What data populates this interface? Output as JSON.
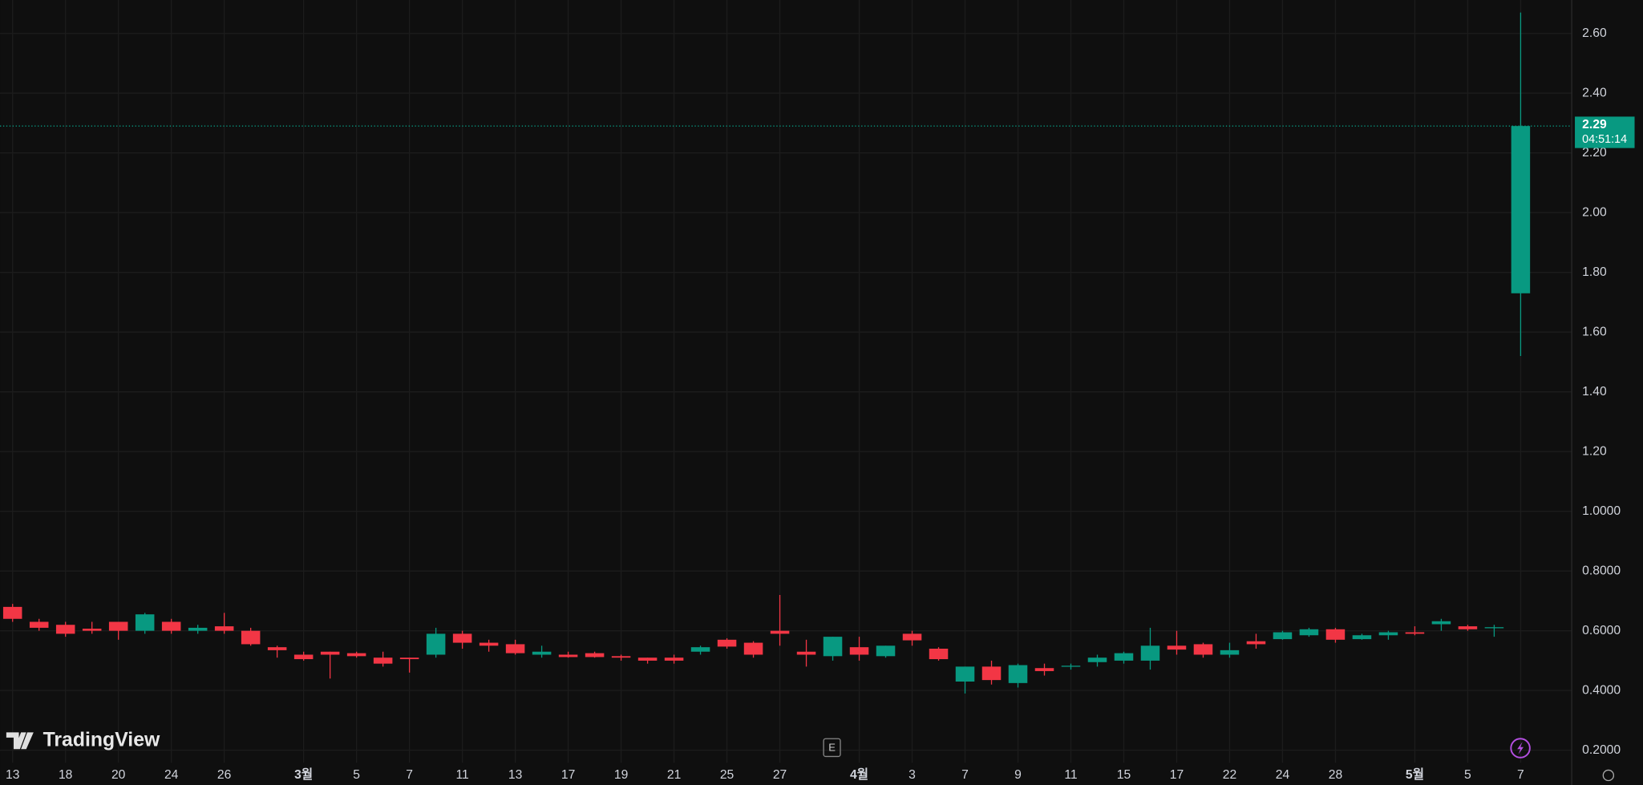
{
  "chart_data": {
    "type": "candlestick",
    "categories": [
      "13",
      null,
      "18",
      null,
      "20",
      null,
      "24",
      null,
      "26",
      null,
      null,
      "3월",
      null,
      "5",
      null,
      "7",
      null,
      "11",
      null,
      "13",
      null,
      "17",
      null,
      "19",
      null,
      "21",
      null,
      "25",
      null,
      "27",
      null,
      null,
      "4월",
      null,
      "3",
      null,
      "7",
      null,
      "9",
      null,
      "11",
      null,
      "15",
      null,
      "17",
      null,
      "22",
      null,
      "24",
      null,
      "28",
      null,
      null,
      "5월",
      null,
      "5",
      null,
      "7"
    ],
    "month_labels": [
      "3월",
      "4월",
      "5월"
    ],
    "open": [
      0.68,
      0.63,
      0.62,
      0.607,
      0.63,
      0.6,
      0.63,
      0.6,
      0.615,
      0.6,
      0.545,
      0.52,
      0.53,
      0.525,
      0.51,
      0.51,
      0.52,
      0.59,
      0.56,
      0.555,
      0.52,
      0.52,
      0.525,
      0.515,
      0.51,
      0.51,
      0.53,
      0.57,
      0.56,
      0.6,
      0.53,
      0.515,
      0.545,
      0.515,
      0.59,
      0.54,
      0.43,
      0.48,
      0.425,
      0.475,
      0.48,
      0.495,
      0.5,
      0.5,
      0.55,
      0.555,
      0.52,
      0.565,
      0.572,
      0.585,
      0.605,
      0.572,
      0.585,
      0.595,
      0.622,
      0.615,
      0.61,
      1.73
    ],
    "high": [
      0.69,
      0.64,
      0.63,
      0.63,
      0.63,
      0.66,
      0.64,
      0.62,
      0.66,
      0.61,
      0.55,
      0.53,
      0.53,
      0.53,
      0.53,
      0.51,
      0.61,
      0.6,
      0.57,
      0.57,
      0.55,
      0.53,
      0.53,
      0.52,
      0.51,
      0.52,
      0.55,
      0.575,
      0.565,
      0.72,
      0.57,
      0.58,
      0.58,
      0.55,
      0.6,
      0.545,
      0.48,
      0.5,
      0.49,
      0.49,
      0.49,
      0.52,
      0.53,
      0.61,
      0.6,
      0.56,
      0.56,
      0.59,
      0.6,
      0.61,
      0.61,
      0.59,
      0.6,
      0.615,
      0.64,
      0.62,
      0.62,
      2.67
    ],
    "low": [
      0.63,
      0.6,
      0.58,
      0.59,
      0.57,
      0.59,
      0.59,
      0.59,
      0.59,
      0.55,
      0.51,
      0.5,
      0.44,
      0.51,
      0.48,
      0.46,
      0.51,
      0.54,
      0.53,
      0.52,
      0.51,
      0.51,
      0.51,
      0.5,
      0.49,
      0.49,
      0.52,
      0.54,
      0.51,
      0.55,
      0.48,
      0.5,
      0.5,
      0.51,
      0.55,
      0.5,
      0.39,
      0.42,
      0.41,
      0.45,
      0.47,
      0.48,
      0.49,
      0.47,
      0.52,
      0.51,
      0.51,
      0.54,
      0.57,
      0.58,
      0.56,
      0.57,
      0.57,
      0.585,
      0.6,
      0.6,
      0.58,
      1.52
    ],
    "close": [
      0.64,
      0.61,
      0.59,
      0.6,
      0.6,
      0.655,
      0.6,
      0.61,
      0.6,
      0.555,
      0.535,
      0.505,
      0.52,
      0.515,
      0.49,
      0.505,
      0.59,
      0.56,
      0.55,
      0.525,
      0.53,
      0.512,
      0.512,
      0.51,
      0.5,
      0.5,
      0.545,
      0.547,
      0.52,
      0.59,
      0.52,
      0.58,
      0.52,
      0.55,
      0.568,
      0.505,
      0.48,
      0.435,
      0.485,
      0.465,
      0.483,
      0.51,
      0.525,
      0.55,
      0.537,
      0.52,
      0.535,
      0.555,
      0.595,
      0.605,
      0.57,
      0.585,
      0.595,
      0.59,
      0.632,
      0.605,
      0.612,
      2.29
    ],
    "up_color": "#089981",
    "down_color": "#f23645",
    "ylim": [
      0.158,
      2.712
    ],
    "yticks": [
      {
        "value": 2.6,
        "label": "2.60"
      },
      {
        "value": 2.4,
        "label": "2.40"
      },
      {
        "value": 2.2,
        "label": "2.20"
      },
      {
        "value": 2.0,
        "label": "2.00"
      },
      {
        "value": 1.8,
        "label": "1.80"
      },
      {
        "value": 1.6,
        "label": "1.60"
      },
      {
        "value": 1.4,
        "label": "1.40"
      },
      {
        "value": 1.2,
        "label": "1.20"
      },
      {
        "value": 1.0,
        "label": "1.0000"
      },
      {
        "value": 0.8,
        "label": "0.8000"
      },
      {
        "value": 0.6,
        "label": "0.6000"
      },
      {
        "value": 0.4,
        "label": "0.4000"
      },
      {
        "value": 0.2,
        "label": "0.2000"
      }
    ],
    "grid": true,
    "last_price": {
      "value": 2.29,
      "label": "2.29"
    },
    "countdown": "04:51:14",
    "event_marker": "E",
    "watermark": "TradingView"
  }
}
